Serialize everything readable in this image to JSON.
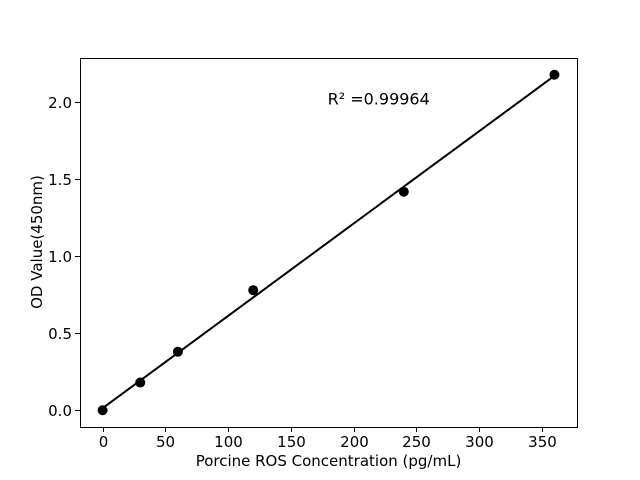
{
  "chart_data": {
    "type": "scatter",
    "title": "",
    "xlabel": "Porcine ROS Concentration (pg/mL)",
    "ylabel": "OD Value(450nm)",
    "x": [
      0,
      30,
      60,
      120,
      240,
      360
    ],
    "y": [
      0.0,
      0.18,
      0.38,
      0.78,
      1.42,
      2.18
    ],
    "fit_line": {
      "x": [
        0,
        360
      ],
      "y": [
        0.013,
        2.173
      ]
    },
    "annotation": {
      "text": "R² =0.99964",
      "x": 220,
      "y": 2.02
    },
    "r_squared": 0.99964,
    "xlim": [
      -18,
      378
    ],
    "ylim": [
      -0.109,
      2.289
    ],
    "xticks": {
      "values": [
        0,
        50,
        100,
        150,
        200,
        250,
        300,
        350
      ],
      "labels": [
        "0",
        "50",
        "100",
        "150",
        "200",
        "250",
        "300",
        "350"
      ]
    },
    "yticks": {
      "values": [
        0.0,
        0.5,
        1.0,
        1.5,
        2.0
      ],
      "labels": [
        "0.0",
        "0.5",
        "1.0",
        "1.5",
        "2.0"
      ]
    },
    "grid": false,
    "legend": "none",
    "marker_color": "#000000",
    "line_color": "#000000",
    "axis_color": "#000000",
    "background": "#ffffff"
  }
}
